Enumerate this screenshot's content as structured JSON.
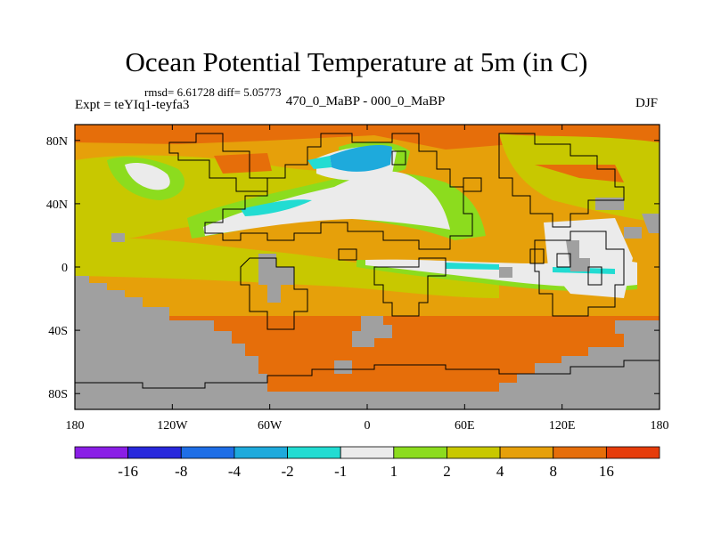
{
  "title": "Ocean Potential Temperature at 5m (in C)",
  "stats": "rmsd= 6.61728 diff= 5.05773",
  "experiment": "Expt = teYIq1-teyfa3",
  "comparison": "470_0_MaBP - 000_0_MaBP",
  "season": "DJF",
  "axes": {
    "x_ticks": [
      {
        "value": -180,
        "label": "180"
      },
      {
        "value": -120,
        "label": "120W"
      },
      {
        "value": -60,
        "label": "60W"
      },
      {
        "value": 0,
        "label": "0"
      },
      {
        "value": 60,
        "label": "60E"
      },
      {
        "value": 120,
        "label": "120E"
      },
      {
        "value": 180,
        "label": "180"
      }
    ],
    "y_ticks": [
      {
        "value": 80,
        "label": "80N"
      },
      {
        "value": 40,
        "label": "40N"
      },
      {
        "value": 0,
        "label": "0"
      },
      {
        "value": -40,
        "label": "40S"
      },
      {
        "value": -80,
        "label": "80S"
      }
    ],
    "lon_range": [
      -180,
      180
    ],
    "lat_range": [
      -90,
      90
    ]
  },
  "colorbar": {
    "colors": [
      "#8a1ee6",
      "#2828dc",
      "#1e6ee6",
      "#1eaadc",
      "#22dcd2",
      "#ebebeb",
      "#8cdc1e",
      "#c8c800",
      "#e6a00a",
      "#e66e0a",
      "#e63c0a"
    ],
    "labels": [
      "-16",
      "-8",
      "-4",
      "-2",
      "-1",
      "1",
      "2",
      "4",
      "8",
      "16"
    ]
  },
  "land_color": "#a0a0a0"
}
